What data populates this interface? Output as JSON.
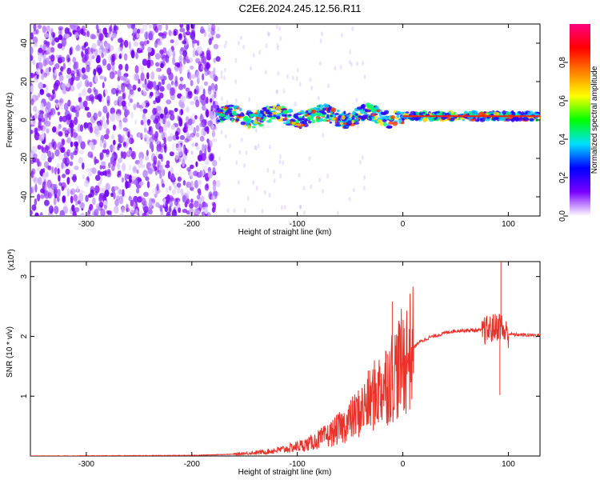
{
  "title": "C2E6.2024.245.12.56.R11",
  "chart_data": [
    {
      "type": "heatmap",
      "xlabel": "Height of straight line (km)",
      "ylabel": "Frequency (Hz)",
      "xlim": [
        -353,
        130
      ],
      "ylim": [
        -50,
        50
      ],
      "xticks": [
        "-300",
        "-200",
        "-100",
        "0",
        "100"
      ],
      "xtick_values": [
        -300,
        -200,
        -100,
        0,
        100
      ],
      "yticks": [
        "-40",
        "-20",
        "0",
        "20",
        "40"
      ],
      "ytick_values": [
        -40,
        -20,
        0,
        20,
        40
      ],
      "colorbar": {
        "label": "Normalized spectral amplitude",
        "range": [
          0,
          1
        ],
        "ticks": [
          "0.0",
          "0.2",
          "0.4",
          "0.6",
          "0.8"
        ],
        "tick_values": [
          0.0,
          0.2,
          0.4,
          0.6,
          0.8
        ],
        "colors": [
          "#ffffff",
          "#7a00ff",
          "#0000ff",
          "#00e0ff",
          "#00ff00",
          "#ffff00",
          "#ff7f00",
          "#ff0000",
          "#ff0080"
        ]
      },
      "features": {
        "noise_region_x": [
          -353,
          -175
        ],
        "signal_band_x": [
          -175,
          130
        ],
        "signal_band_center_hz": 2,
        "strong_signal_x": [
          0,
          130
        ]
      }
    },
    {
      "type": "line",
      "xlabel": "Height of straight line (km)",
      "ylabel": "SNR (10 * v/v)",
      "y_multiplier": "(x10^4)",
      "xlim": [
        -353,
        130
      ],
      "ylim": [
        0,
        3.25
      ],
      "xticks": [
        "-300",
        "-200",
        "-100",
        "0",
        "100"
      ],
      "xtick_values": [
        -300,
        -200,
        -100,
        0,
        100
      ],
      "yticks": [
        "1",
        "2",
        "3"
      ],
      "ytick_values": [
        1,
        2,
        3
      ],
      "series": [
        {
          "color": "#e8332a",
          "x": [
            -353,
            -200,
            -160,
            -130,
            -110,
            -90,
            -70,
            -55,
            -40,
            -25,
            -10,
            -3,
            5,
            15,
            25,
            35,
            45,
            55,
            70,
            80,
            88,
            92,
            95,
            98,
            105,
            120,
            130
          ],
          "y": [
            0.0,
            0.01,
            0.03,
            0.07,
            0.12,
            0.2,
            0.35,
            0.52,
            0.75,
            1.05,
            1.35,
            1.5,
            1.7,
            1.9,
            1.98,
            2.03,
            2.08,
            2.1,
            2.1,
            2.1,
            2.15,
            2.2,
            2.1,
            2.05,
            2.03,
            2.02,
            2.02
          ]
        }
      ],
      "annotations": [
        {
          "x": -10,
          "y": 2.58
        },
        {
          "x": 93,
          "y": 3.25
        },
        {
          "x": 92,
          "y": 1.02
        }
      ]
    }
  ]
}
